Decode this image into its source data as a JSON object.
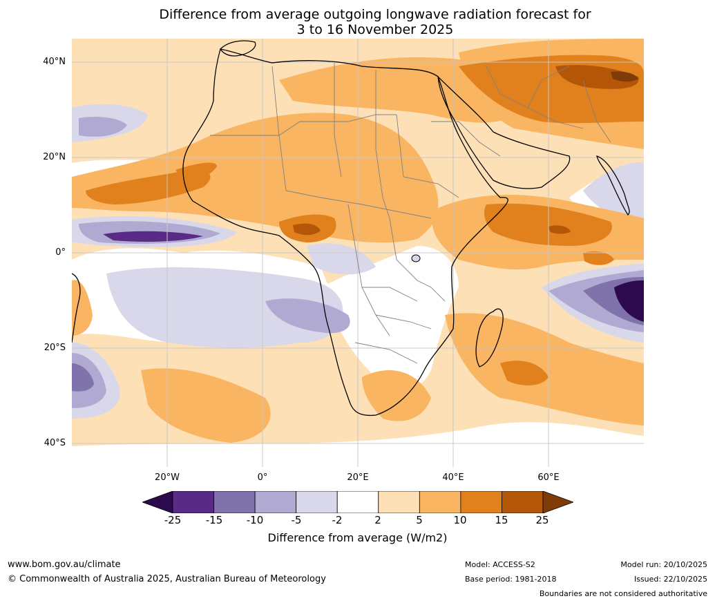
{
  "title": {
    "line1": "Difference from average outgoing longwave radiation forecast for",
    "line2": "3 to 16 November 2025"
  },
  "map": {
    "lat_labels": [
      "40°N",
      "20°N",
      "0°",
      "20°S",
      "40°S"
    ],
    "lon_labels": [
      "20°W",
      "0°",
      "20°E",
      "40°E",
      "60°E"
    ]
  },
  "colorbar": {
    "ticks": [
      "-25",
      "-15",
      "-10",
      "-5",
      "-2",
      "2",
      "5",
      "10",
      "15",
      "25"
    ],
    "label": "Difference from average (W/m2)",
    "colors": {
      "below_min": "#2d0a4e",
      "bins": [
        "#5a2a87",
        "#8072ab",
        "#b0aad2",
        "#d8d8ea",
        "#ffffff",
        "#fde0b6",
        "#f9b562",
        "#e0811e",
        "#b35608"
      ],
      "above_max": "#7f3b08"
    }
  },
  "footer": {
    "website": "www.bom.gov.au/climate",
    "copyright": "© Commonwealth of Australia 2025, Australian Bureau of Meteorology",
    "model": "Model: ACCESS-S2",
    "base_period": "Base period: 1981-2018",
    "model_run": "Model run: 20/10/2025",
    "issued": "Issued: 22/10/2025",
    "disclaimer": "Boundaries are not considered authoritative"
  }
}
